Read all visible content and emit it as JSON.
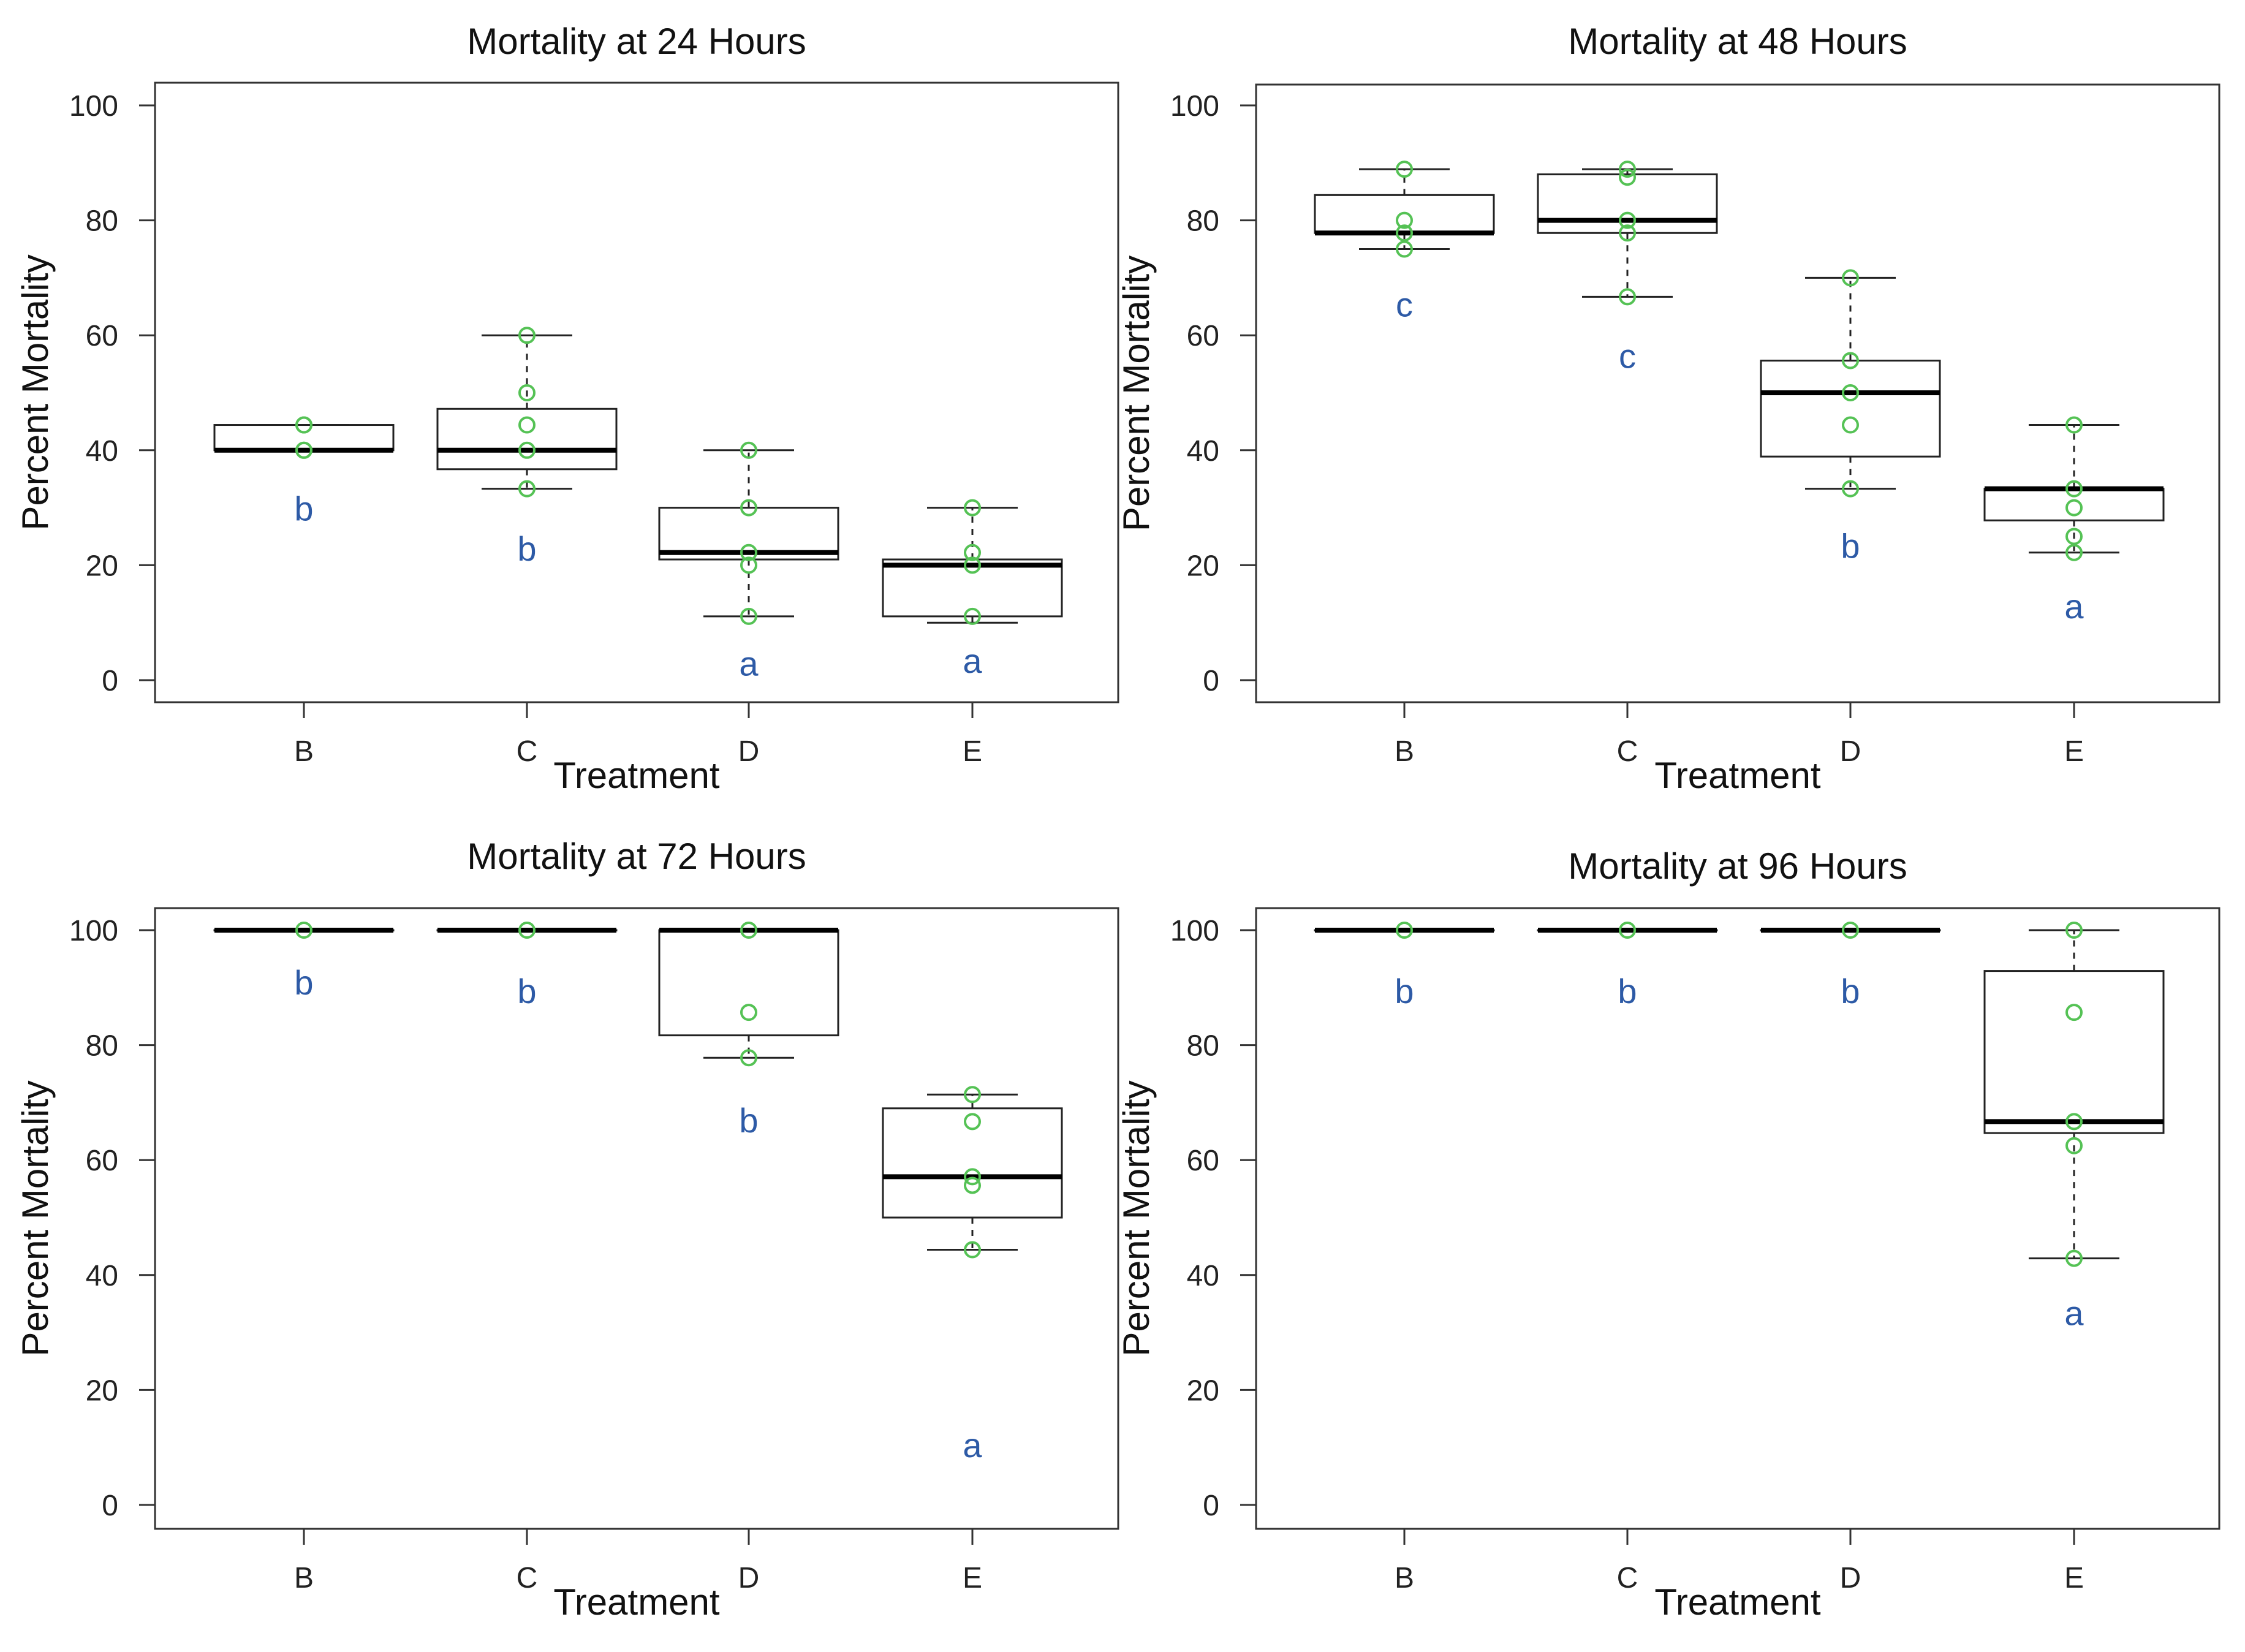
{
  "colors": {
    "point": "#55c255",
    "letter": "#2d5aa6",
    "box": "#222222",
    "median": "#000000"
  },
  "chart_data": [
    {
      "type": "box",
      "title": "Mortality at 24 Hours",
      "xlabel": "Treatment",
      "ylabel": "Percent Mortality",
      "ylim": [
        0,
        100
      ],
      "yticks": [
        0,
        20,
        40,
        60,
        80,
        100
      ],
      "categories": [
        "B",
        "C",
        "D",
        "E"
      ],
      "boxes": [
        {
          "q1": 40,
          "median": 40,
          "q3": 44.4,
          "whisker_low": 40,
          "whisker_high": 44.4
        },
        {
          "q1": 36.7,
          "median": 40,
          "q3": 47.2,
          "whisker_low": 33.3,
          "whisker_high": 60
        },
        {
          "q1": 21,
          "median": 22.2,
          "q3": 30,
          "whisker_low": 11.1,
          "whisker_high": 40
        },
        {
          "q1": 11.1,
          "median": 20,
          "q3": 21,
          "whisker_low": 10,
          "whisker_high": 30
        }
      ],
      "points": [
        [
          40,
          40,
          44.4,
          44.4
        ],
        [
          33.3,
          40,
          44.4,
          50,
          60
        ],
        [
          11.1,
          20,
          22.2,
          30,
          40
        ],
        [
          11.1,
          20,
          22.2,
          30
        ]
      ],
      "letters": [
        {
          "text": "b",
          "y": 29.5
        },
        {
          "text": "b",
          "y": 22.5
        },
        {
          "text": "a",
          "y": 2.5
        },
        {
          "text": "a",
          "y": 3
        }
      ]
    },
    {
      "type": "box",
      "title": "Mortality at 48 Hours",
      "xlabel": "Treatment",
      "ylabel": "Percent Mortality",
      "ylim": [
        0,
        100
      ],
      "yticks": [
        0,
        20,
        40,
        60,
        80,
        100
      ],
      "categories": [
        "B",
        "C",
        "D",
        "E"
      ],
      "boxes": [
        {
          "q1": 77.8,
          "median": 77.8,
          "q3": 84.4,
          "whisker_low": 75,
          "whisker_high": 88.9
        },
        {
          "q1": 77.8,
          "median": 80,
          "q3": 88,
          "whisker_low": 66.7,
          "whisker_high": 88.9
        },
        {
          "q1": 38.9,
          "median": 50,
          "q3": 55.6,
          "whisker_low": 33.3,
          "whisker_high": 70
        },
        {
          "q1": 27.8,
          "median": 33.3,
          "q3": 33.3,
          "whisker_low": 22.2,
          "whisker_high": 44.4
        }
      ],
      "points": [
        [
          75,
          77.8,
          80,
          88.9
        ],
        [
          66.7,
          77.8,
          80,
          87.5,
          88.9
        ],
        [
          33.3,
          44.4,
          50,
          55.6,
          70
        ],
        [
          22.2,
          25,
          30,
          33.3,
          44.4
        ]
      ],
      "letters": [
        {
          "text": "c",
          "y": 65
        },
        {
          "text": "c",
          "y": 56
        },
        {
          "text": "b",
          "y": 23
        },
        {
          "text": "a",
          "y": 12.5
        }
      ]
    },
    {
      "type": "box",
      "title": "Mortality at 72 Hours",
      "xlabel": "Treatment",
      "ylabel": "Percent Mortality",
      "ylim": [
        0,
        100
      ],
      "yticks": [
        0,
        20,
        40,
        60,
        80,
        100
      ],
      "categories": [
        "B",
        "C",
        "D",
        "E"
      ],
      "boxes": [
        {
          "q1": 100,
          "median": 100,
          "q3": 100,
          "whisker_low": 100,
          "whisker_high": 100
        },
        {
          "q1": 100,
          "median": 100,
          "q3": 100,
          "whisker_low": 100,
          "whisker_high": 100
        },
        {
          "q1": 81.7,
          "median": 100,
          "q3": 100,
          "whisker_low": 77.8,
          "whisker_high": 100
        },
        {
          "q1": 50,
          "median": 57.1,
          "q3": 69,
          "whisker_low": 44.4,
          "whisker_high": 71.4
        }
      ],
      "points": [
        [
          100
        ],
        [
          100
        ],
        [
          77.8,
          85.7,
          100
        ],
        [
          44.4,
          55.6,
          57.1,
          66.7,
          71.4
        ]
      ],
      "letters": [
        {
          "text": "b",
          "y": 90.5
        },
        {
          "text": "b",
          "y": 89
        },
        {
          "text": "b",
          "y": 66.5
        },
        {
          "text": "a",
          "y": 10
        }
      ]
    },
    {
      "type": "box",
      "title": "Mortality at 96 Hours",
      "xlabel": "Treatment",
      "ylabel": "Percent Mortality",
      "ylim": [
        0,
        100
      ],
      "yticks": [
        0,
        20,
        40,
        60,
        80,
        100
      ],
      "categories": [
        "B",
        "C",
        "D",
        "E"
      ],
      "boxes": [
        {
          "q1": 100,
          "median": 100,
          "q3": 100,
          "whisker_low": 100,
          "whisker_high": 100
        },
        {
          "q1": 100,
          "median": 100,
          "q3": 100,
          "whisker_low": 100,
          "whisker_high": 100
        },
        {
          "q1": 100,
          "median": 100,
          "q3": 100,
          "whisker_low": 100,
          "whisker_high": 100
        },
        {
          "q1": 64.7,
          "median": 66.7,
          "q3": 92.9,
          "whisker_low": 42.9,
          "whisker_high": 100
        }
      ],
      "points": [
        [
          100
        ],
        [
          100
        ],
        [
          100
        ],
        [
          42.9,
          62.5,
          66.7,
          85.7,
          100
        ]
      ],
      "letters": [
        {
          "text": "b",
          "y": 89
        },
        {
          "text": "b",
          "y": 89
        },
        {
          "text": "b",
          "y": 89
        },
        {
          "text": "a",
          "y": 33
        }
      ]
    }
  ]
}
